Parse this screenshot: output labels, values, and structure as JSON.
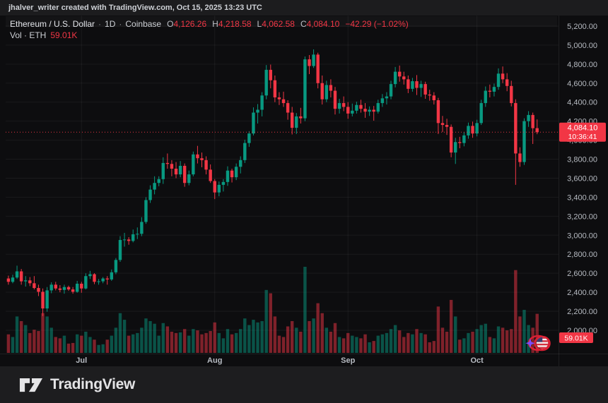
{
  "attribution_bar": {
    "text": "jhalver_writer created with TradingView.com, Oct 15, 2025 13:23 UTC"
  },
  "legend": {
    "symbol_title": "Ethereum / U.S. Dollar",
    "separator": "·",
    "interval": "1D",
    "exchange": "Coinbase",
    "ohlc": [
      {
        "label": "O",
        "value": "4,126.26"
      },
      {
        "label": "H",
        "value": "4,218.58"
      },
      {
        "label": "L",
        "value": "4,062.58"
      },
      {
        "label": "C",
        "value": "4,084.10"
      }
    ],
    "change": "−42.29 (−1.02%)",
    "volume_row": {
      "label": "Vol · ETH",
      "value": "59.01K"
    }
  },
  "last_price_label": {
    "price": "4,084.10",
    "countdown": "10:36:41"
  },
  "volume_axis_label": "59.01K",
  "footer": {
    "brand": "TradingView"
  },
  "colors": {
    "up": "#089981",
    "down": "#f23645",
    "volume_up": "rgba(8,153,129,0.5)",
    "volume_down": "rgba(242,54,69,0.5)",
    "axis_text": "#b7bbc2",
    "grid": "rgba(255,255,255,0.055)",
    "label_bg": "#f23645",
    "sparkle": "#7c4dff"
  },
  "time_scale": {
    "months": [
      {
        "label": "Jul",
        "index": 17
      },
      {
        "label": "Aug",
        "index": 48
      },
      {
        "label": "Sep",
        "index": 79
      },
      {
        "label": "Oct",
        "index": 109
      }
    ]
  },
  "chart_data": {
    "type": "candlestick",
    "title": "Ethereum / U.S. Dollar",
    "exchange": "Coinbase",
    "interval": "1D",
    "start_date": "2025-06-14",
    "end_date": "2025-10-15",
    "grid": true,
    "legend_position": "top-left",
    "price_axis_range": [
      1755,
      5311
    ],
    "price_axis": {
      "values": [
        5200,
        5000,
        4800,
        4600,
        4400,
        4200,
        4000,
        3800,
        3600,
        3400,
        3200,
        3000,
        2800,
        2600,
        2400,
        2200,
        2000
      ],
      "labels": [
        "5,200.00",
        "5,000.00",
        "4,800.00",
        "4,600.00",
        "4,400.00",
        "4,200.00",
        "4,000.00",
        "3,800.00",
        "3,600.00",
        "3,400.00",
        "3,200.00",
        "3,000.00",
        "2,800.00",
        "2,600.00",
        "2,400.00",
        "2,200.00",
        "2,000.00"
      ]
    },
    "last_close": 4084.1,
    "last_volume_k": 59.01,
    "volume_units": "thousands of ETH",
    "ohlcv": [
      [
        2545,
        2575,
        2480,
        2510,
        28
      ],
      [
        2510,
        2585,
        2495,
        2555,
        24
      ],
      [
        2555,
        2680,
        2540,
        2620,
        55
      ],
      [
        2620,
        2645,
        2480,
        2515,
        48
      ],
      [
        2515,
        2570,
        2460,
        2525,
        42
      ],
      [
        2525,
        2560,
        2465,
        2495,
        30
      ],
      [
        2495,
        2570,
        2430,
        2445,
        35
      ],
      [
        2445,
        2480,
        2360,
        2405,
        33
      ],
      [
        2405,
        2440,
        2150,
        2230,
        60
      ],
      [
        2230,
        2455,
        2195,
        2420,
        55
      ],
      [
        2420,
        2505,
        2390,
        2480,
        38
      ],
      [
        2480,
        2510,
        2420,
        2440,
        24
      ],
      [
        2440,
        2475,
        2400,
        2425,
        22
      ],
      [
        2425,
        2480,
        2385,
        2455,
        26
      ],
      [
        2455,
        2470,
        2415,
        2430,
        14
      ],
      [
        2430,
        2455,
        2385,
        2405,
        15
      ],
      [
        2405,
        2520,
        2395,
        2490,
        28
      ],
      [
        2490,
        2510,
        2395,
        2440,
        26
      ],
      [
        2440,
        2600,
        2430,
        2570,
        32
      ],
      [
        2570,
        2625,
        2540,
        2590,
        24
      ],
      [
        2590,
        2600,
        2485,
        2510,
        20
      ],
      [
        2510,
        2540,
        2480,
        2515,
        12
      ],
      [
        2515,
        2560,
        2495,
        2545,
        13
      ],
      [
        2545,
        2570,
        2480,
        2535,
        20
      ],
      [
        2535,
        2640,
        2520,
        2610,
        26
      ],
      [
        2610,
        2760,
        2590,
        2740,
        38
      ],
      [
        2740,
        2990,
        2720,
        2950,
        60
      ],
      [
        2950,
        3025,
        2880,
        2955,
        50
      ],
      [
        2955,
        2980,
        2900,
        2940,
        26
      ],
      [
        2940,
        3060,
        2925,
        3010,
        28
      ],
      [
        3010,
        3082,
        2960,
        3015,
        30
      ],
      [
        3015,
        3190,
        2990,
        3140,
        38
      ],
      [
        3140,
        3400,
        3120,
        3370,
        52
      ],
      [
        3370,
        3525,
        3340,
        3480,
        48
      ],
      [
        3480,
        3620,
        3430,
        3550,
        44
      ],
      [
        3550,
        3620,
        3515,
        3590,
        26
      ],
      [
        3590,
        3820,
        3540,
        3760,
        45
      ],
      [
        3760,
        3860,
        3700,
        3750,
        40
      ],
      [
        3750,
        3790,
        3620,
        3700,
        32
      ],
      [
        3700,
        3770,
        3600,
        3640,
        30
      ],
      [
        3640,
        3780,
        3610,
        3730,
        31
      ],
      [
        3730,
        3755,
        3510,
        3550,
        36
      ],
      [
        3550,
        3680,
        3525,
        3640,
        26
      ],
      [
        3640,
        3880,
        3620,
        3850,
        36
      ],
      [
        3850,
        3940,
        3755,
        3810,
        34
      ],
      [
        3810,
        3870,
        3715,
        3790,
        28
      ],
      [
        3790,
        3830,
        3640,
        3690,
        30
      ],
      [
        3690,
        3745,
        3550,
        3570,
        33
      ],
      [
        3570,
        3590,
        3380,
        3450,
        46
      ],
      [
        3450,
        3565,
        3410,
        3530,
        30
      ],
      [
        3530,
        3590,
        3460,
        3560,
        22
      ],
      [
        3560,
        3725,
        3520,
        3680,
        36
      ],
      [
        3680,
        3700,
        3555,
        3610,
        28
      ],
      [
        3610,
        3755,
        3580,
        3720,
        30
      ],
      [
        3720,
        3830,
        3650,
        3790,
        36
      ],
      [
        3790,
        4005,
        3760,
        3970,
        52
      ],
      [
        3970,
        4095,
        3930,
        4070,
        42
      ],
      [
        4070,
        4345,
        4050,
        4290,
        50
      ],
      [
        4290,
        4380,
        4175,
        4320,
        46
      ],
      [
        4320,
        4505,
        4250,
        4470,
        48
      ],
      [
        4470,
        4790,
        4430,
        4740,
        95
      ],
      [
        4740,
        4795,
        4545,
        4630,
        90
      ],
      [
        4630,
        4680,
        4400,
        4450,
        55
      ],
      [
        4450,
        4505,
        4370,
        4430,
        26
      ],
      [
        4430,
        4510,
        4350,
        4390,
        24
      ],
      [
        4390,
        4420,
        4215,
        4290,
        40
      ],
      [
        4290,
        4350,
        4060,
        4130,
        48
      ],
      [
        4130,
        4285,
        4065,
        4250,
        38
      ],
      [
        4250,
        4340,
        4175,
        4230,
        32
      ],
      [
        4230,
        4880,
        4200,
        4850,
        130
      ],
      [
        4850,
        4895,
        4695,
        4780,
        48
      ],
      [
        4780,
        4955,
        4760,
        4900,
        52
      ],
      [
        4900,
        4920,
        4545,
        4600,
        75
      ],
      [
        4600,
        4680,
        4375,
        4430,
        60
      ],
      [
        4430,
        4625,
        4400,
        4580,
        38
      ],
      [
        4580,
        4640,
        4450,
        4520,
        32
      ],
      [
        4520,
        4560,
        4270,
        4330,
        45
      ],
      [
        4330,
        4435,
        4280,
        4390,
        24
      ],
      [
        4390,
        4460,
        4305,
        4350,
        22
      ],
      [
        4350,
        4400,
        4225,
        4280,
        30
      ],
      [
        4280,
        4385,
        4250,
        4310,
        26
      ],
      [
        4310,
        4405,
        4280,
        4370,
        24
      ],
      [
        4370,
        4425,
        4290,
        4330,
        22
      ],
      [
        4330,
        4390,
        4235,
        4300,
        28
      ],
      [
        4300,
        4355,
        4255,
        4320,
        16
      ],
      [
        4320,
        4360,
        4205,
        4300,
        18
      ],
      [
        4300,
        4425,
        4280,
        4390,
        26
      ],
      [
        4390,
        4485,
        4350,
        4440,
        28
      ],
      [
        4440,
        4505,
        4375,
        4460,
        30
      ],
      [
        4460,
        4625,
        4430,
        4590,
        36
      ],
      [
        4590,
        4770,
        4555,
        4720,
        42
      ],
      [
        4720,
        4785,
        4615,
        4670,
        34
      ],
      [
        4670,
        4720,
        4585,
        4640,
        24
      ],
      [
        4640,
        4680,
        4495,
        4540,
        30
      ],
      [
        4540,
        4655,
        4510,
        4620,
        28
      ],
      [
        4620,
        4685,
        4475,
        4550,
        36
      ],
      [
        4550,
        4625,
        4455,
        4590,
        30
      ],
      [
        4590,
        4615,
        4435,
        4480,
        28
      ],
      [
        4480,
        4530,
        4415,
        4470,
        16
      ],
      [
        4470,
        4505,
        4375,
        4420,
        18
      ],
      [
        4420,
        4445,
        4065,
        4180,
        70
      ],
      [
        4180,
        4255,
        4085,
        4160,
        38
      ],
      [
        4160,
        4225,
        4055,
        4140,
        32
      ],
      [
        4140,
        4165,
        3820,
        3870,
        80
      ],
      [
        3870,
        4025,
        3750,
        3980,
        55
      ],
      [
        3980,
        4035,
        3915,
        3970,
        20
      ],
      [
        3970,
        4085,
        3935,
        4050,
        22
      ],
      [
        4050,
        4185,
        4015,
        4150,
        30
      ],
      [
        4150,
        4195,
        4025,
        4070,
        32
      ],
      [
        4070,
        4215,
        4040,
        4180,
        36
      ],
      [
        4180,
        4425,
        4160,
        4390,
        42
      ],
      [
        4390,
        4565,
        4350,
        4520,
        44
      ],
      [
        4520,
        4585,
        4450,
        4510,
        24
      ],
      [
        4510,
        4595,
        4460,
        4560,
        22
      ],
      [
        4560,
        4755,
        4530,
        4700,
        40
      ],
      [
        4700,
        4775,
        4600,
        4640,
        38
      ],
      [
        4640,
        4705,
        4515,
        4570,
        34
      ],
      [
        4570,
        4625,
        4355,
        4390,
        36
      ],
      [
        4390,
        4430,
        3530,
        3860,
        125
      ],
      [
        3860,
        3925,
        3720,
        3770,
        55
      ],
      [
        3770,
        4230,
        3740,
        4200,
        65
      ],
      [
        4200,
        4305,
        4140,
        4265,
        42
      ],
      [
        4265,
        4290,
        3960,
        4126,
        38
      ],
      [
        4126.26,
        4218.58,
        4062.58,
        4084.1,
        59.01
      ]
    ]
  }
}
